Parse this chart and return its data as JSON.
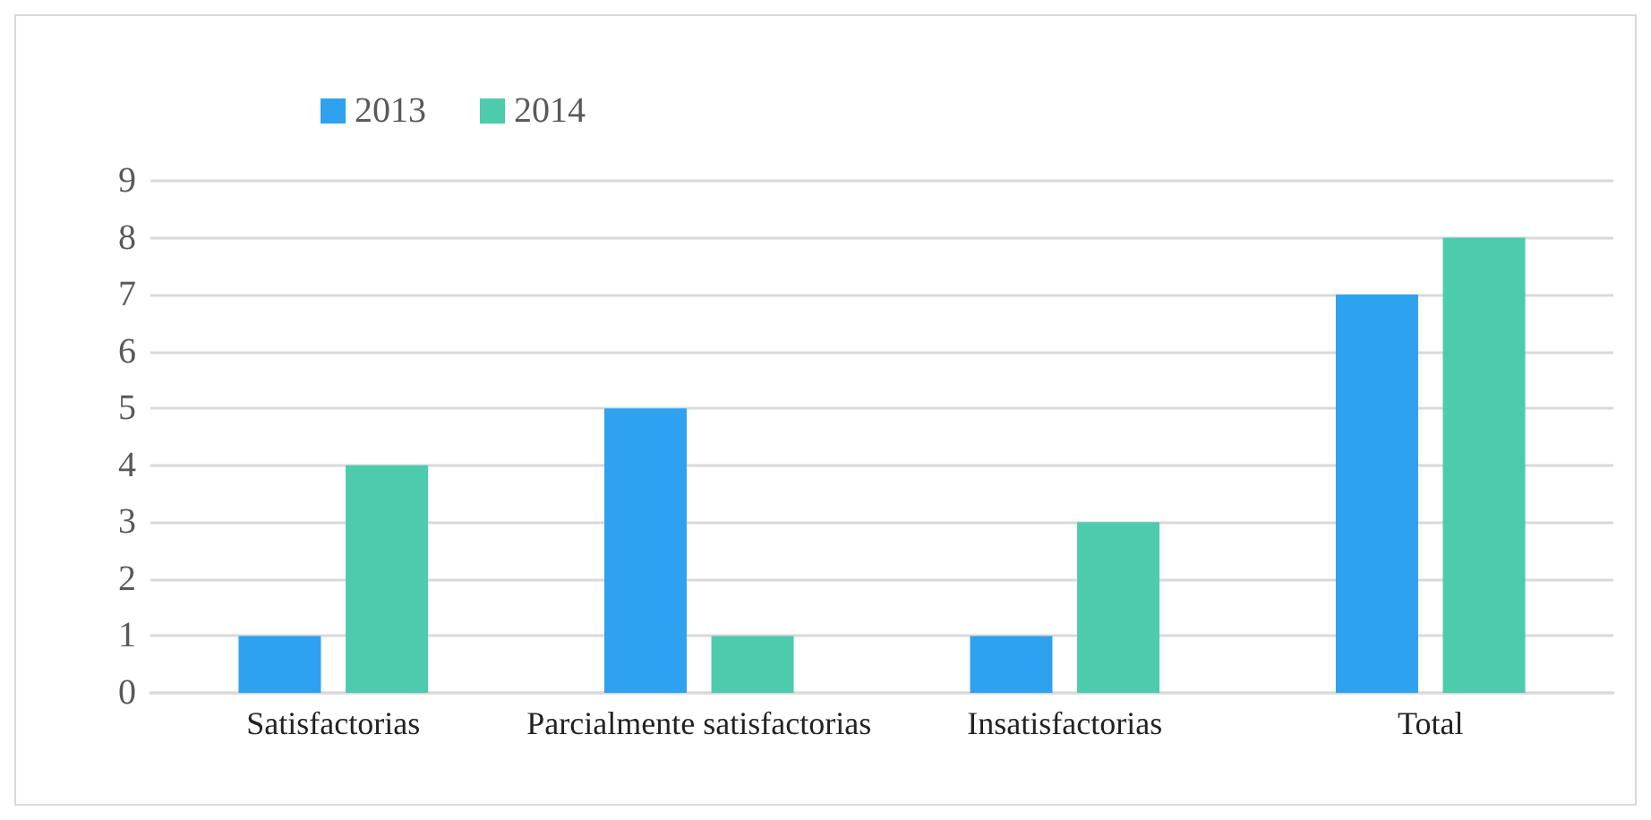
{
  "chart_data": {
    "type": "bar",
    "categories": [
      "Satisfactorias",
      "Parcialmente satisfactorias",
      "Insatisfactorias",
      "Total"
    ],
    "series": [
      {
        "name": "2013",
        "color": "#2ea2ee",
        "values": [
          1,
          5,
          1,
          7
        ]
      },
      {
        "name": "2014",
        "color": "#4ccbad",
        "values": [
          4,
          1,
          3,
          8
        ]
      }
    ],
    "ylim": [
      0,
      9
    ],
    "yticks": [
      0,
      1,
      2,
      3,
      4,
      5,
      6,
      7,
      8,
      9
    ],
    "grid": "y",
    "legend": "top left"
  }
}
